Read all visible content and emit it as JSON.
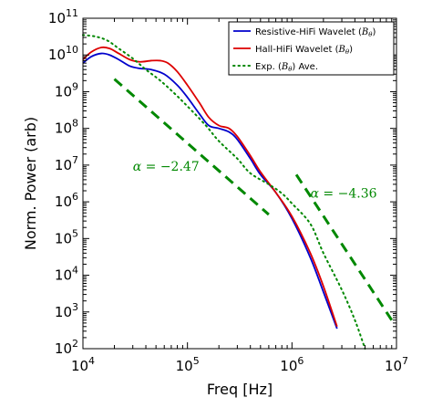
{
  "chart_data": {
    "type": "line",
    "xlabel": "Freq [Hz]",
    "ylabel": "Norm. Power (arb)",
    "x_scale": "log",
    "y_scale": "log",
    "xlim": [
      10000,
      10000000
    ],
    "ylim": [
      100,
      100000000000
    ],
    "x_ticks": [
      {
        "value": 10000,
        "base": "10",
        "exp": "4"
      },
      {
        "value": 100000,
        "base": "10",
        "exp": "5"
      },
      {
        "value": 1000000,
        "base": "10",
        "exp": "6"
      },
      {
        "value": 10000000,
        "base": "10",
        "exp": "7"
      }
    ],
    "y_ticks": [
      {
        "value": 100,
        "base": "10",
        "exp": "2"
      },
      {
        "value": 1000,
        "base": "10",
        "exp": "3"
      },
      {
        "value": 10000,
        "base": "10",
        "exp": "4"
      },
      {
        "value": 100000,
        "base": "10",
        "exp": "5"
      },
      {
        "value": 1000000,
        "base": "10",
        "exp": "6"
      },
      {
        "value": 10000000,
        "base": "10",
        "exp": "7"
      },
      {
        "value": 100000000,
        "base": "10",
        "exp": "8"
      },
      {
        "value": 1000000000,
        "base": "10",
        "exp": "9"
      },
      {
        "value": 10000000000,
        "base": "10",
        "exp": "10"
      },
      {
        "value": 100000000000,
        "base": "10",
        "exp": "11"
      }
    ],
    "legend_position": "top-right",
    "grid": false,
    "series": [
      {
        "name": "Resistive-HiFi Wavelet (Bθ)",
        "name_prefix": "Resistive-HiFi Wavelet (",
        "name_var": "B",
        "name_sub": "θ",
        "name_suffix": ")",
        "color": "#0000cc",
        "style": "solid",
        "x": [
          10000,
          12000,
          15000,
          18000,
          22000,
          28000,
          35000,
          45000,
          60000,
          80000,
          100000,
          130000,
          160000,
          200000,
          250000,
          300000,
          400000,
          500000,
          700000,
          1000000,
          1500000,
          2000000,
          2700000
        ],
        "y": [
          6000000000,
          9000000000,
          11000000000,
          10000000000,
          7500000000,
          5000000000,
          4300000000,
          4000000000,
          3000000000,
          1500000000,
          700000000,
          250000000,
          120000000,
          100000000,
          80000000,
          50000000,
          15000000,
          5500000,
          1800000,
          350000,
          30000,
          3500,
          350
        ]
      },
      {
        "name": "Hall-HiFi Wavelet (Bθ)",
        "name_prefix": "Hall-HiFi Wavelet (",
        "name_var": "B",
        "name_sub": "θ",
        "name_suffix": ")",
        "color": "#dd0000",
        "style": "solid",
        "x": [
          10000,
          12000,
          15000,
          18000,
          22000,
          28000,
          35000,
          45000,
          55000,
          65000,
          80000,
          100000,
          130000,
          160000,
          200000,
          250000,
          300000,
          400000,
          500000,
          700000,
          1000000,
          1500000,
          2000000,
          2700000
        ],
        "y": [
          7500000000,
          12000000000,
          16000000000,
          15000000000,
          11000000000,
          7500000000,
          6500000000,
          7000000000,
          7000000000,
          6000000000,
          3500000000,
          1500000000,
          500000000,
          200000000,
          120000000,
          100000000,
          60000000,
          18000000,
          6500000,
          1800000,
          400000,
          40000,
          5000,
          400
        ]
      },
      {
        "name": "Exp. (Bθ) Ave.",
        "name_prefix": "Exp. (",
        "name_var": "B",
        "name_sub": "θ",
        "name_suffix": ") Ave.",
        "color": "#008800",
        "style": "dotted",
        "x": [
          10000,
          13000,
          17000,
          22000,
          30000,
          40000,
          55000,
          75000,
          100000,
          150000,
          200000,
          300000,
          400000,
          600000,
          800000,
          1000000,
          1500000,
          2000000,
          3000000,
          4000000,
          5000000
        ],
        "y": [
          35000000000,
          32000000000,
          25000000000,
          15000000000,
          8000000000,
          4000000000,
          2000000000,
          900000000,
          400000000,
          120000000,
          45000000,
          15000000,
          6000000,
          3000000,
          1700000,
          900000,
          250000,
          40000,
          4000,
          600,
          100
        ]
      }
    ],
    "fit_lines": [
      {
        "label_alpha": "α",
        "label_eq": "=",
        "label_value": "−2.47",
        "color": "#008800",
        "x": [
          20000,
          600000
        ],
        "y": [
          2200000000,
          450000
        ],
        "label_x": 30000,
        "label_y": 7000000
      },
      {
        "label_alpha": "α",
        "label_eq": "=",
        "label_value": "−4.36",
        "color": "#008800",
        "x": [
          1100000,
          9000000
        ],
        "y": [
          5500000,
          600
        ],
        "label_x": 1500000,
        "label_y": 1300000
      }
    ]
  }
}
